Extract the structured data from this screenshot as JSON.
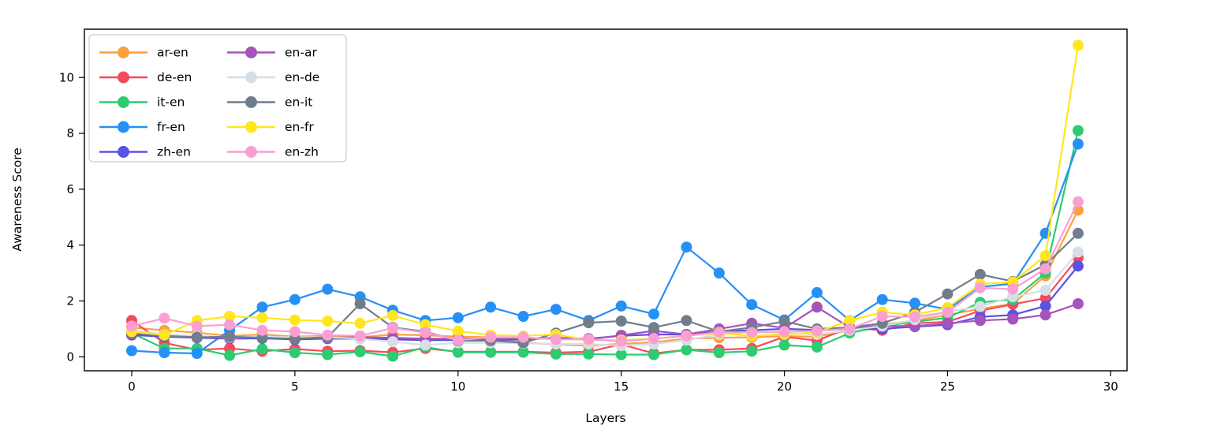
{
  "figure": {
    "background": "#ffffff",
    "axis_color": "#000000",
    "legend_border_color": "#cccccc",
    "legend_background": "#ffffff"
  },
  "chart_data": {
    "type": "line",
    "title": "",
    "xlabel": "Layers",
    "ylabel": "Awareness Score",
    "x": [
      0,
      1,
      2,
      3,
      4,
      5,
      6,
      7,
      8,
      9,
      10,
      11,
      12,
      13,
      14,
      15,
      16,
      17,
      18,
      19,
      20,
      21,
      22,
      23,
      24,
      25,
      26,
      27,
      28,
      29
    ],
    "xticks": [
      0,
      5,
      10,
      15,
      20,
      25,
      30
    ],
    "yticks": [
      0,
      2,
      4,
      6,
      8,
      10
    ],
    "xlim": [
      -1.45,
      30.5
    ],
    "ylim": [
      -0.5,
      11.73
    ],
    "grid": false,
    "legend_position": "upper-left",
    "legend_columns": 2,
    "marker": "circle",
    "series": [
      {
        "name": "ar-en",
        "color": "#F9A23C",
        "values": [
          1.05,
          0.95,
          0.86,
          0.75,
          0.8,
          0.72,
          0.75,
          0.7,
          0.8,
          0.77,
          0.72,
          0.7,
          0.5,
          0.45,
          0.4,
          0.46,
          0.52,
          0.65,
          0.68,
          0.7,
          0.74,
          0.72,
          0.95,
          1.15,
          1.3,
          1.5,
          1.72,
          1.9,
          2.9,
          5.25
        ]
      },
      {
        "name": "de-en",
        "color": "#F54A5E",
        "values": [
          1.3,
          0.5,
          0.25,
          0.3,
          0.2,
          0.28,
          0.2,
          0.22,
          0.16,
          0.3,
          0.18,
          0.18,
          0.18,
          0.15,
          0.18,
          0.45,
          0.12,
          0.25,
          0.25,
          0.3,
          0.72,
          0.58,
          1.05,
          0.95,
          1.2,
          1.25,
          1.65,
          1.88,
          2.1,
          3.55
        ]
      },
      {
        "name": "it-en",
        "color": "#2DCC70",
        "values": [
          0.85,
          0.3,
          0.3,
          0.05,
          0.28,
          0.15,
          0.08,
          0.18,
          0.02,
          0.35,
          0.16,
          0.16,
          0.16,
          0.1,
          0.1,
          0.08,
          0.08,
          0.25,
          0.15,
          0.2,
          0.42,
          0.35,
          0.85,
          1.1,
          1.25,
          1.4,
          1.95,
          2.05,
          3.0,
          8.1
        ]
      },
      {
        "name": "fr-en",
        "color": "#2590F5",
        "values": [
          0.22,
          0.15,
          0.12,
          0.95,
          1.78,
          2.05,
          2.42,
          2.15,
          1.67,
          1.3,
          1.4,
          1.78,
          1.45,
          1.7,
          1.3,
          1.82,
          1.53,
          3.93,
          3.0,
          1.87,
          1.32,
          2.3,
          1.3,
          2.05,
          1.92,
          1.7,
          2.5,
          2.62,
          4.42,
          7.62
        ]
      },
      {
        "name": "zh-en",
        "color": "#5A52E0",
        "values": [
          0.78,
          0.72,
          0.68,
          0.65,
          0.66,
          0.62,
          0.65,
          0.65,
          0.62,
          0.6,
          0.6,
          0.6,
          0.62,
          0.68,
          0.65,
          0.75,
          0.8,
          0.8,
          0.9,
          0.95,
          1.0,
          0.96,
          1.0,
          1.0,
          1.08,
          1.15,
          1.43,
          1.5,
          1.82,
          3.25
        ]
      },
      {
        "name": "en-ar",
        "color": "#A653BC",
        "values": [
          0.82,
          0.78,
          0.72,
          0.68,
          0.7,
          0.66,
          0.68,
          0.7,
          0.68,
          0.65,
          0.65,
          0.65,
          0.68,
          0.65,
          0.62,
          0.77,
          0.93,
          0.8,
          1.0,
          1.2,
          1.03,
          1.78,
          1.05,
          1.1,
          1.1,
          1.2,
          1.3,
          1.35,
          1.5,
          1.9
        ]
      },
      {
        "name": "en-de",
        "color": "#D8DEE6",
        "values": [
          0.95,
          0.8,
          0.75,
          0.7,
          0.72,
          0.7,
          0.7,
          0.65,
          0.54,
          0.42,
          0.5,
          0.5,
          0.48,
          0.46,
          0.46,
          0.4,
          0.46,
          0.6,
          0.8,
          0.9,
          0.85,
          0.8,
          0.95,
          1.1,
          1.33,
          1.62,
          1.8,
          2.15,
          2.38,
          3.75
        ]
      },
      {
        "name": "en-it",
        "color": "#6F7D8C",
        "values": [
          0.85,
          0.75,
          0.7,
          0.72,
          0.68,
          0.65,
          0.7,
          1.9,
          1.05,
          0.9,
          0.58,
          0.58,
          0.5,
          0.85,
          1.22,
          1.28,
          1.05,
          1.3,
          0.9,
          1.05,
          1.27,
          1.0,
          1.05,
          1.2,
          1.6,
          2.25,
          2.95,
          2.7,
          3.3,
          4.42
        ]
      },
      {
        "name": "en-fr",
        "color": "#FFE61E",
        "values": [
          0.9,
          0.78,
          1.3,
          1.45,
          1.4,
          1.32,
          1.28,
          1.2,
          1.48,
          1.15,
          0.92,
          0.78,
          0.75,
          0.8,
          0.6,
          0.6,
          0.65,
          0.75,
          0.85,
          0.75,
          0.8,
          0.88,
          1.3,
          1.6,
          1.5,
          1.76,
          2.6,
          2.68,
          3.62,
          11.15
        ]
      },
      {
        "name": "en-zh",
        "color": "#FB9FD2",
        "values": [
          1.1,
          1.38,
          1.1,
          1.15,
          0.95,
          0.9,
          0.78,
          0.75,
          1.03,
          0.87,
          0.6,
          0.7,
          0.7,
          0.62,
          0.63,
          0.55,
          0.65,
          0.75,
          0.88,
          0.87,
          0.9,
          0.93,
          1.0,
          1.45,
          1.43,
          1.6,
          2.47,
          2.42,
          3.15,
          5.55
        ]
      }
    ]
  }
}
